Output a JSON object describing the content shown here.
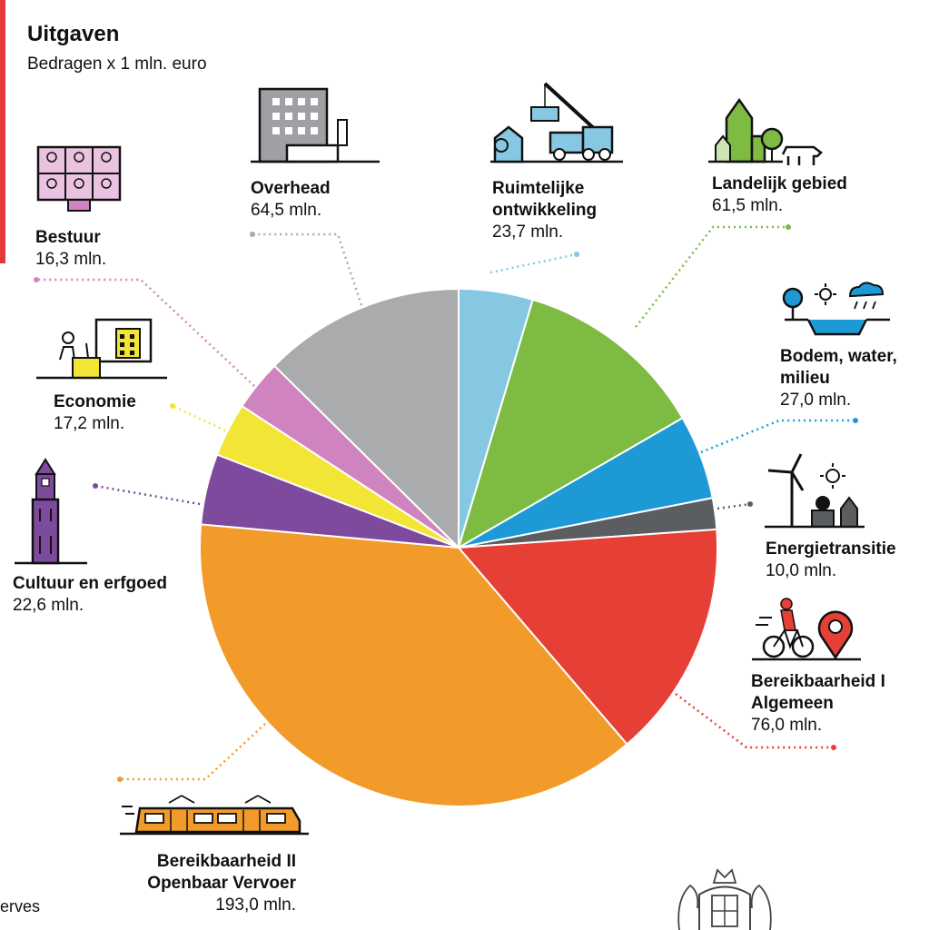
{
  "header": {
    "title": "Uitgaven",
    "subtitle": "Bedragen x 1 mln. euro"
  },
  "footnote": "erves",
  "colors": {
    "accent": "#e23a3a"
  },
  "chart_data": {
    "type": "pie",
    "title": "Uitgaven",
    "subtitle": "Bedragen x 1 mln. euro",
    "unit": "mln.",
    "slices": [
      {
        "label_line1": "Ruimtelijke",
        "label_line2": "ontwikkeling",
        "value": 23.7,
        "value_text": "23,7 mln.",
        "color": "#86c8e2",
        "icon": "crane-icon"
      },
      {
        "label_line1": "Landelijk gebied",
        "label_line2": "",
        "value": 61.5,
        "value_text": "61,5 mln.",
        "color": "#7dbb42",
        "icon": "church-cow-icon"
      },
      {
        "label_line1": "Bodem, water,",
        "label_line2": "milieu",
        "value": 27.0,
        "value_text": "27,0 mln.",
        "color": "#1d9ad6",
        "icon": "water-weather-icon"
      },
      {
        "label_line1": "Energietransitie",
        "label_line2": "",
        "value": 10.0,
        "value_text": "10,0 mln.",
        "color": "#5b5e60",
        "icon": "windmill-sun-icon"
      },
      {
        "label_line1": "Bereikbaarheid I",
        "label_line2": "Algemeen",
        "value": 76.0,
        "value_text": "76,0 mln.",
        "color": "#e63f36",
        "icon": "bicycle-pin-icon"
      },
      {
        "label_line1": "Bereikbaarheid II",
        "label_line2": "Openbaar Vervoer",
        "value": 193.0,
        "value_text": "193,0 mln.",
        "color": "#f39b2a",
        "icon": "tram-icon"
      },
      {
        "label_line1": "Cultuur en erfgoed",
        "label_line2": "",
        "value": 22.6,
        "value_text": "22,6 mln.",
        "color": "#7e4a9e",
        "icon": "tower-icon"
      },
      {
        "label_line1": "Economie",
        "label_line2": "",
        "value": 17.2,
        "value_text": "17,2 mln.",
        "color": "#f2e535",
        "icon": "office-worker-icon"
      },
      {
        "label_line1": "Bestuur",
        "label_line2": "",
        "value": 16.3,
        "value_text": "16,3 mln.",
        "color": "#d084bf",
        "icon": "video-call-icon"
      },
      {
        "label_line1": "Overhead",
        "label_line2": "",
        "value": 64.5,
        "value_text": "64,5 mln.",
        "color": "#a9abad",
        "icon": "office-building-icon"
      }
    ],
    "legend": "none"
  }
}
